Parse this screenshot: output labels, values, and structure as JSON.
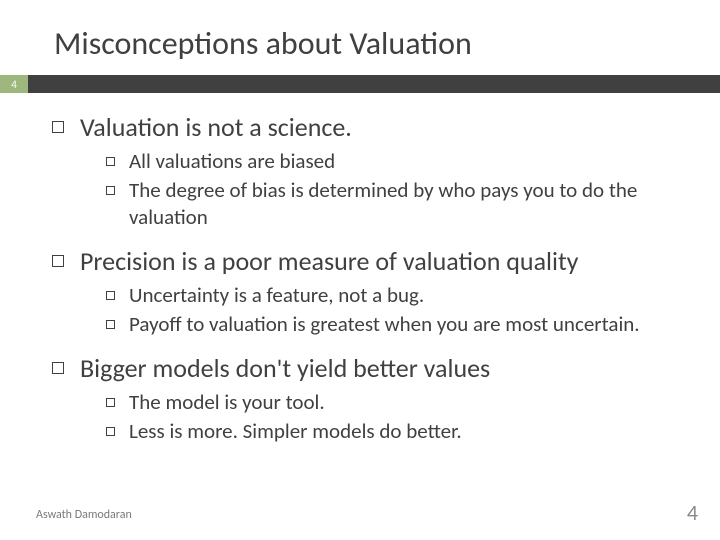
{
  "title": "Misconceptions about Valuation",
  "pageBadge": "4",
  "colors": {
    "badgeBg": "#9db77c",
    "stripBg": "#404040",
    "textMain": "#404040"
  },
  "points": [
    {
      "text": "Valuation is not a science.",
      "sub": [
        "All valuations are biased",
        "The degree of bias is determined by who pays you to do the valuation"
      ]
    },
    {
      "text": "Precision is a poor measure of valuation quality",
      "sub": [
        "Uncertainty is a feature, not a bug.",
        "Payoff to valuation is greatest when you are most uncertain."
      ]
    },
    {
      "text": "Bigger models don't yield better values",
      "sub": [
        "The model is your tool.",
        "Less is more. Simpler models do better."
      ]
    }
  ],
  "author": "Aswath Damodaran",
  "pageNumber": "4"
}
